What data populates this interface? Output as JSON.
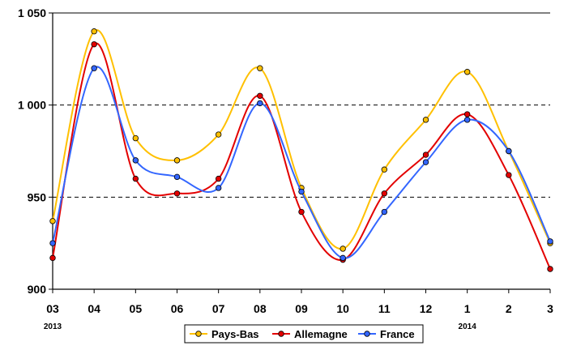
{
  "chart_data": {
    "type": "line",
    "title": "",
    "xlabel": "",
    "ylabel": "",
    "categories": [
      "03",
      "04",
      "05",
      "06",
      "07",
      "08",
      "09",
      "10",
      "11",
      "12",
      "1",
      "2",
      "3"
    ],
    "year_labels": [
      {
        "category": "03",
        "label": "2013"
      },
      {
        "category": "1",
        "label": "2014"
      }
    ],
    "ylim": [
      900,
      1050
    ],
    "yticks": [
      900,
      950,
      1000,
      1050
    ],
    "ytick_labels": [
      "900",
      "950",
      "1 000",
      "1 050"
    ],
    "grid": "horizontal-dashed",
    "legend_position": "bottom",
    "series": [
      {
        "name": "Pays-Bas",
        "color": "#FFC000",
        "values": [
          937,
          1040,
          982,
          970,
          984,
          1020,
          955,
          922,
          965,
          992,
          1018,
          975,
          925
        ]
      },
      {
        "name": "Allemagne",
        "color": "#E30000",
        "values": [
          917,
          1033,
          960,
          952,
          960,
          1005,
          942,
          916,
          952,
          973,
          995,
          962,
          911
        ]
      },
      {
        "name": "France",
        "color": "#3366FF",
        "values": [
          925,
          1020,
          970,
          961,
          955,
          1001,
          953,
          917,
          942,
          969,
          992,
          975,
          926
        ]
      }
    ]
  }
}
